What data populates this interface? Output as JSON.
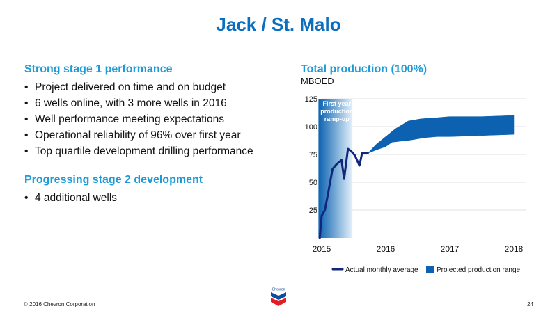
{
  "slide": {
    "title": "Jack / St. Malo",
    "footer_copyright": "© 2016 Chevron Corporation",
    "page_number": "24",
    "logo_text": "Chevron"
  },
  "left": {
    "section1_title": "Strong stage 1 performance",
    "section1_bullets": [
      "Project delivered on time and on budget",
      "6 wells online, with 3 more wells in 2016",
      "Well performance meeting expectations",
      "Operational reliability of 96% over first year",
      "Top quartile development drilling performance"
    ],
    "section2_title": "Progressing stage 2 development",
    "section2_bullets": [
      "4 additional wells"
    ]
  },
  "chart_data": {
    "type": "line",
    "title": "Total production (100%)",
    "ylabel": "MBOED",
    "xlabel": "",
    "ylim": [
      0,
      125
    ],
    "xlim": [
      2015,
      2018
    ],
    "y_ticks": [
      25,
      50,
      75,
      100,
      125
    ],
    "x_ticks": [
      2015,
      2016,
      2017,
      2018
    ],
    "grid": "horizontal",
    "legend_position": "bottom",
    "shaded_region": {
      "label_lines": [
        "First year",
        "production",
        "ramp-up"
      ],
      "x_range": [
        2014.95,
        2015.48
      ],
      "color_dark": "#0c62b0",
      "color_light": "#e3f1fb"
    },
    "series": [
      {
        "name": "Actual monthly average",
        "kind": "line",
        "color": "#11277b",
        "points": [
          [
            2014.97,
            0
          ],
          [
            2015.0,
            20
          ],
          [
            2015.05,
            25
          ],
          [
            2015.1,
            40
          ],
          [
            2015.17,
            62
          ],
          [
            2015.23,
            66
          ],
          [
            2015.31,
            70
          ],
          [
            2015.35,
            53
          ],
          [
            2015.41,
            80
          ],
          [
            2015.46,
            78
          ],
          [
            2015.52,
            74
          ],
          [
            2015.59,
            65
          ],
          [
            2015.63,
            76
          ],
          [
            2015.72,
            76
          ]
        ]
      },
      {
        "name": "Projected production range",
        "kind": "range",
        "color": "#0c62b0",
        "upper": [
          [
            2015.72,
            76
          ],
          [
            2015.85,
            84
          ],
          [
            2016.0,
            91
          ],
          [
            2016.15,
            98
          ],
          [
            2016.35,
            105
          ],
          [
            2016.55,
            107
          ],
          [
            2016.8,
            108
          ],
          [
            2017.0,
            109
          ],
          [
            2017.5,
            109
          ],
          [
            2018.0,
            110
          ],
          [
            2018.0,
            110
          ]
        ],
        "lower": [
          [
            2015.72,
            76
          ],
          [
            2015.85,
            79
          ],
          [
            2016.0,
            82
          ],
          [
            2016.1,
            86
          ],
          [
            2016.4,
            88
          ],
          [
            2016.6,
            90
          ],
          [
            2016.8,
            91
          ],
          [
            2017.0,
            91
          ],
          [
            2017.5,
            92
          ],
          [
            2018.0,
            93
          ]
        ]
      }
    ]
  }
}
